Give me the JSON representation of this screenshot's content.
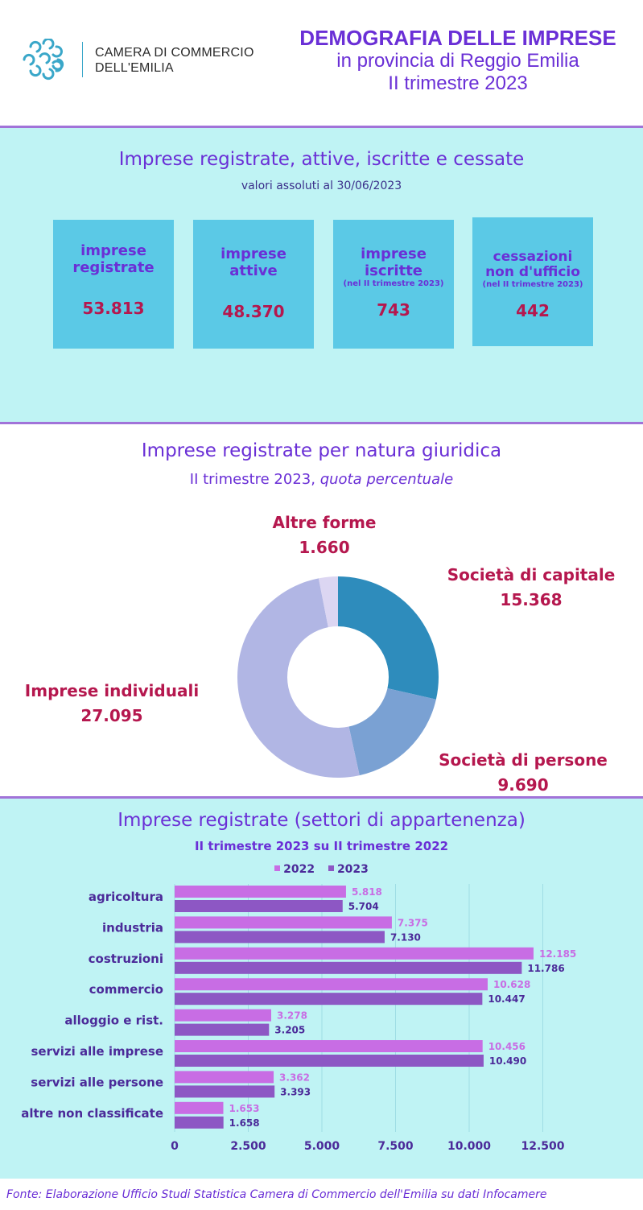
{
  "header": {
    "logo_line1": "CAMERA DI COMMERCIO",
    "logo_line2": "DELL'EMILIA",
    "title_line1": "DEMOGRAFIA DELLE IMPRESE",
    "title_line2": "in provincia di Reggio Emilia",
    "title_line3": "II trimestre 2023"
  },
  "kpi": {
    "title": "Imprese registrate, attive, iscritte e cessate",
    "subtitle": "valori assoluti  al 30/06/2023",
    "boxes": [
      {
        "label1": "imprese",
        "label2": "registrate",
        "note": "",
        "value": "53.813"
      },
      {
        "label1": "imprese",
        "label2": "attive",
        "note": "",
        "value": "48.370"
      },
      {
        "label1": "imprese",
        "label2": "iscritte",
        "note": "(nel II trimestre 2023)",
        "value": "743"
      },
      {
        "label1": "cessazioni",
        "label2": "non d'ufficio",
        "note": "(nel II trimestre 2023)",
        "value": "442"
      }
    ]
  },
  "chart_data": [
    {
      "type": "pie",
      "title": "Imprese registrate per natura giuridica",
      "subtitle_plain": "II trimestre 2023, ",
      "subtitle_italic": "quota percentuale",
      "categories": [
        "Società di capitale",
        "Società di persone",
        "Imprese individuali",
        "Altre forme"
      ],
      "values": [
        15368,
        9690,
        27095,
        1660
      ],
      "value_labels": [
        "15.368",
        "9.690",
        "27.095",
        "1.660"
      ],
      "colors": [
        "#2e8cbc",
        "#7aa1d3",
        "#b1b6e4",
        "#dcd6f2"
      ],
      "donut": true
    },
    {
      "type": "bar",
      "orientation": "horizontal",
      "title": "Imprese registrate (settori di appartenenza)",
      "subtitle": "II trimestre 2023 su II trimestre 2022",
      "categories": [
        "agricoltura",
        "industria",
        "costruzioni",
        "commercio",
        "alloggio e rist.",
        "servizi alle imprese",
        "servizi alle persone",
        "altre non classificate"
      ],
      "series": [
        {
          "name": "2022",
          "color": "#c86de4",
          "values": [
            5818,
            7375,
            12185,
            10628,
            3278,
            10456,
            3362,
            1653
          ],
          "labels": [
            "5.818",
            "7.375",
            "12.185",
            "10.628",
            "3.278",
            "10.456",
            "3.362",
            "1.653"
          ]
        },
        {
          "name": "2023",
          "color": "#8d57c4",
          "values": [
            5704,
            7130,
            11786,
            10447,
            3205,
            10490,
            3393,
            1658
          ],
          "labels": [
            "5.704",
            "7.130",
            "11.786",
            "10.447",
            "3.205",
            "10.490",
            "3.393",
            "1.658"
          ]
        }
      ],
      "xlim": [
        0,
        14500
      ],
      "xticks": [
        0,
        2500,
        5000,
        7500,
        10000,
        12500
      ],
      "xtick_labels": [
        "0",
        "2.500",
        "5.000",
        "7.500",
        "10.000",
        "12.500"
      ],
      "grid": true,
      "legend": "top-center"
    }
  ],
  "footer": {
    "source": "Fonte: Elaborazione Ufficio Studi Statistica Camera di Commercio dell'Emilia su dati Infocamere"
  }
}
